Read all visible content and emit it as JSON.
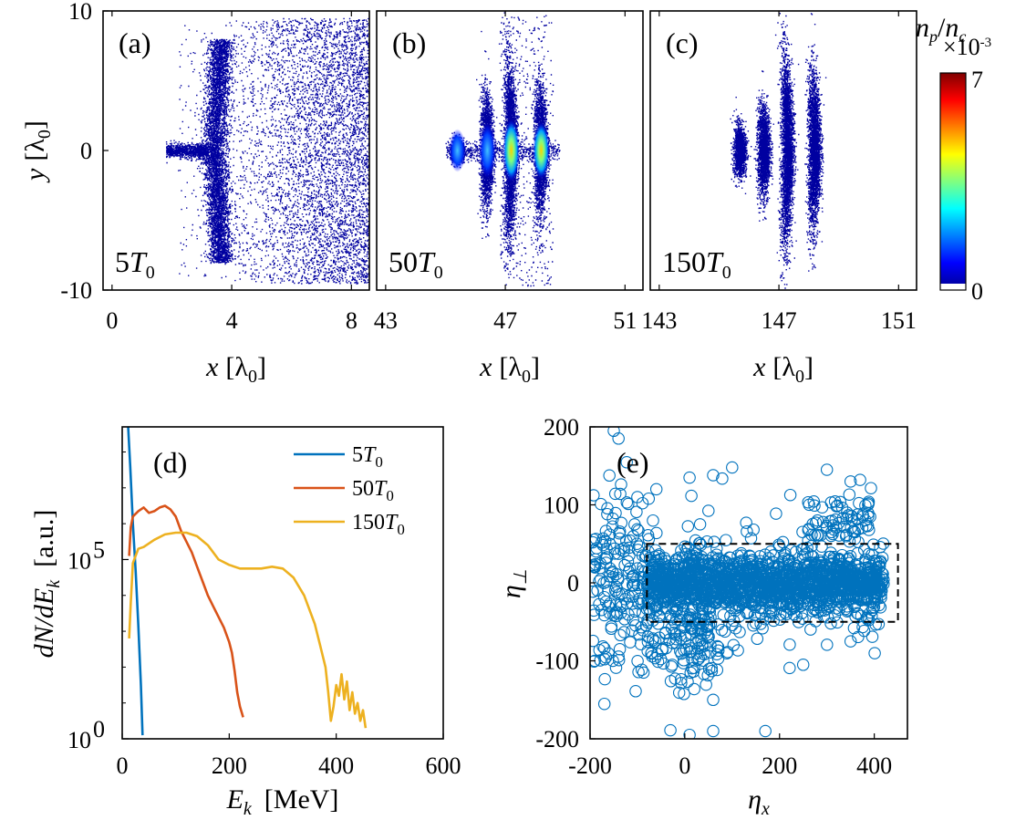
{
  "figure": {
    "colorbar": {
      "label": "n_p/n_c",
      "label_main": "n",
      "label_sub1": "p",
      "label_slash": "/",
      "label_main2": "n",
      "label_sub2": "c",
      "exponent_base": "×10",
      "exponent_power": "-3",
      "max_label": "7",
      "min_label": "0",
      "colormap": "jet"
    }
  },
  "chart_data": [
    {
      "type": "heatmap",
      "panel": "a",
      "panel_label": "(a)",
      "time_label_main": "5",
      "time_label_T": "T",
      "time_label_sub": "0",
      "xlabel_var": "x",
      "xlabel_unit": "[λ",
      "xlabel_unit_sub": "0",
      "xlabel_close": "]",
      "ylabel_var": "y",
      "ylabel_unit": "[λ",
      "ylabel_unit_sub": "0",
      "ylabel_close": "]",
      "xlim": [
        -0.3,
        8.6
      ],
      "ylim": [
        -10,
        10
      ],
      "xticks": [
        0,
        4,
        8
      ],
      "xtick_labels": [
        "0",
        "4",
        "8"
      ],
      "yticks": [
        -10,
        0,
        10
      ],
      "ytick_labels": [
        "-10",
        "0",
        "10"
      ],
      "clim": [
        0,
        0.007
      ],
      "structures": [
        {
          "kind": "core",
          "x0": 1.8,
          "x1": 3.2,
          "half_width": 0.4
        },
        {
          "kind": "front",
          "x": 3.4,
          "y_extent": 8.0,
          "width": 0.4
        },
        {
          "kind": "background",
          "x0": 3.6,
          "x1": 8.6,
          "y_extent": 9.5
        }
      ]
    },
    {
      "type": "heatmap",
      "panel": "b",
      "panel_label": "(b)",
      "time_label_main": "50",
      "time_label_T": "T",
      "time_label_sub": "0",
      "xlabel_var": "x",
      "xlabel_unit": "[λ",
      "xlabel_unit_sub": "0",
      "xlabel_close": "]",
      "xlim": [
        42.7,
        51.6
      ],
      "ylim": [
        -10,
        10
      ],
      "xticks": [
        43,
        47,
        51
      ],
      "xtick_labels": [
        "43",
        "47",
        "51"
      ],
      "clim": [
        0,
        0.007
      ],
      "bunches": [
        {
          "x": 45.4,
          "y_extent": 0.8,
          "peak": 0.002
        },
        {
          "x": 46.4,
          "y_extent": 4.0,
          "peak": 0.003
        },
        {
          "x": 47.2,
          "y_extent": 6.0,
          "peak": 0.006
        },
        {
          "x": 48.2,
          "y_extent": 4.5,
          "peak": 0.0055
        }
      ]
    },
    {
      "type": "heatmap",
      "panel": "c",
      "panel_label": "(c)",
      "time_label_main": "150",
      "time_label_T": "T",
      "time_label_sub": "0",
      "xlabel_var": "x",
      "xlabel_unit": "[λ",
      "xlabel_unit_sub": "0",
      "xlabel_close": "]",
      "xlim": [
        142.7,
        151.6
      ],
      "ylim": [
        -10,
        10
      ],
      "xticks": [
        143,
        147,
        151
      ],
      "xtick_labels": [
        "143",
        "147",
        "151"
      ],
      "clim": [
        0,
        0.007
      ],
      "bunches": [
        {
          "x": 145.7,
          "y_extent": 1.8
        },
        {
          "x": 146.5,
          "y_extent": 3.2
        },
        {
          "x": 147.3,
          "y_extent": 6.5
        },
        {
          "x": 148.2,
          "y_extent": 5.5
        }
      ]
    },
    {
      "type": "line",
      "panel": "d",
      "panel_label": "(d)",
      "xlabel_var": "E",
      "xlabel_sub": "k",
      "xlabel_unit": "[MeV]",
      "ylabel_text": "dN/dE",
      "ylabel_sub": "k",
      "ylabel_unit": "[a.u.]",
      "xlim": [
        0,
        600
      ],
      "ylim_log10": [
        0,
        8.7
      ],
      "xticks": [
        0,
        200,
        400,
        600
      ],
      "xtick_labels": [
        "0",
        "200",
        "400",
        "600"
      ],
      "yticks_log10": [
        0,
        5
      ],
      "ytick_base": "10",
      "ytick_exponents": [
        "0",
        "5"
      ],
      "y_scale": "log",
      "legend_position": "top-right",
      "series": [
        {
          "name_main": "5",
          "name_T": "T",
          "name_sub": "0",
          "color": "#0072BD",
          "x": [
            10,
            15,
            20,
            25,
            30,
            35,
            38
          ],
          "y_log10": [
            9.0,
            7.6,
            6.0,
            4.7,
            3.2,
            1.5,
            0.1
          ]
        },
        {
          "name_main": "50",
          "name_T": "T",
          "name_sub": "0",
          "color": "#D95319",
          "x": [
            13,
            16,
            20,
            30,
            40,
            50,
            60,
            70,
            80,
            90,
            100,
            110,
            120,
            130,
            140,
            150,
            160,
            170,
            180,
            190,
            200,
            205,
            210,
            215,
            220,
            226
          ],
          "y_log10": [
            5.1,
            5.9,
            6.2,
            6.35,
            6.45,
            6.3,
            6.35,
            6.45,
            6.5,
            6.4,
            6.2,
            5.8,
            5.5,
            5.2,
            4.8,
            4.4,
            4.0,
            3.7,
            3.4,
            3.1,
            2.7,
            2.4,
            1.9,
            1.3,
            0.9,
            0.6
          ]
        },
        {
          "name_main": "150",
          "name_T": "T",
          "name_sub": "0",
          "color": "#EDB120",
          "x": [
            13,
            16,
            20,
            30,
            40,
            60,
            80,
            100,
            120,
            140,
            160,
            180,
            200,
            220,
            240,
            260,
            280,
            300,
            320,
            340,
            360,
            370,
            380,
            385,
            390,
            395,
            400,
            405,
            410,
            415,
            420,
            425,
            430,
            435,
            440,
            445,
            450,
            455
          ],
          "y_log10": [
            2.8,
            3.8,
            4.9,
            5.3,
            5.35,
            5.55,
            5.7,
            5.75,
            5.75,
            5.65,
            5.4,
            5.0,
            4.85,
            4.75,
            4.75,
            4.75,
            4.8,
            4.75,
            4.5,
            4.0,
            3.2,
            2.6,
            2.0,
            1.3,
            0.5,
            0.9,
            1.5,
            1.2,
            1.8,
            1.1,
            1.6,
            0.8,
            1.3,
            0.7,
            1.0,
            0.5,
            0.8,
            0.3
          ]
        }
      ]
    },
    {
      "type": "scatter",
      "panel": "e",
      "panel_label": "(e)",
      "xlabel_var": "η",
      "xlabel_sub": "x",
      "ylabel_var": "η",
      "ylabel_sub": "⊥",
      "xlim": [
        -200,
        470
      ],
      "ylim": [
        -200,
        200
      ],
      "xticks": [
        -200,
        0,
        200,
        400
      ],
      "xtick_labels": [
        "-200",
        "0",
        "200",
        "400"
      ],
      "yticks": [
        -200,
        -100,
        0,
        100,
        200
      ],
      "ytick_labels": [
        "-200",
        "-100",
        "0",
        "100",
        "200"
      ],
      "marker": "open-circle",
      "marker_color": "#0072BD",
      "dashed_box": {
        "x0": -80,
        "x1": 450,
        "y0": -50,
        "y1": 50
      },
      "point_count": 1500,
      "representative_points": [
        {
          "x": -150,
          "y": 195
        },
        {
          "x": -140,
          "y": 185
        },
        {
          "x": -100,
          "y": 110
        },
        {
          "x": -60,
          "y": 120
        },
        {
          "x": 10,
          "y": 135
        },
        {
          "x": 60,
          "y": 138
        },
        {
          "x": 100,
          "y": 148
        },
        {
          "x": 300,
          "y": 145
        },
        {
          "x": 350,
          "y": 130
        },
        {
          "x": 370,
          "y": 132
        },
        {
          "x": 10,
          "y": -195
        },
        {
          "x": 60,
          "y": -190
        },
        {
          "x": 170,
          "y": -190
        },
        {
          "x": 60,
          "y": -150
        },
        {
          "x": 250,
          "y": -105
        },
        {
          "x": -190,
          "y": -100
        },
        {
          "x": 350,
          "y": -75
        }
      ]
    }
  ]
}
